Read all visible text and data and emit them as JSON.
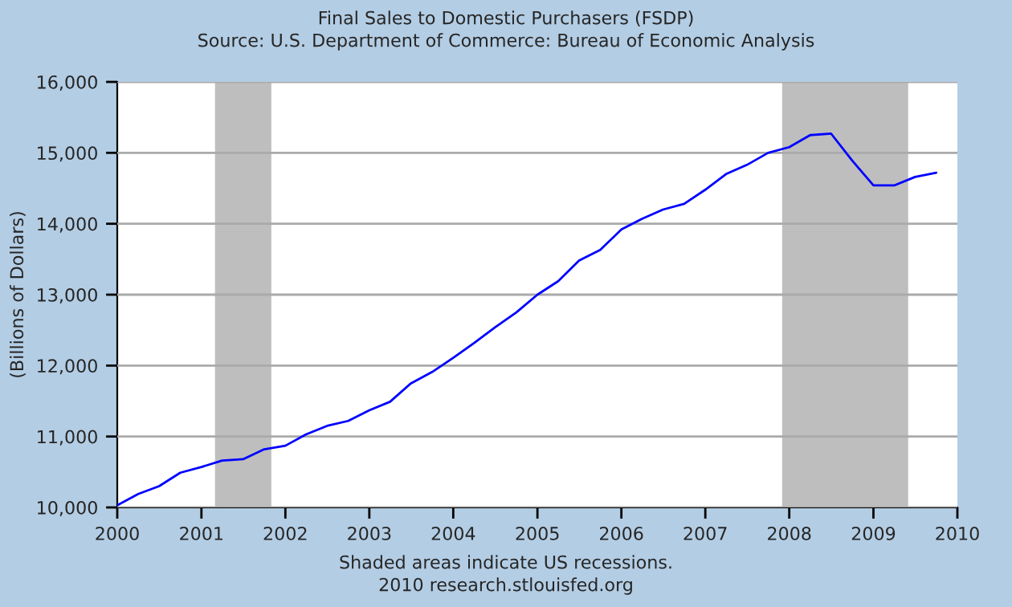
{
  "chart_data": {
    "type": "line",
    "title": "Final Sales to Domestic Purchasers (FSDP)",
    "subtitle": "Source: U.S. Department of Commerce: Bureau of Economic Analysis",
    "ylabel": "(Billions of Dollars)",
    "x": [
      "2000-01",
      "2000-04",
      "2000-07",
      "2000-10",
      "2001-01",
      "2001-04",
      "2001-07",
      "2001-10",
      "2002-01",
      "2002-04",
      "2002-07",
      "2002-10",
      "2003-01",
      "2003-04",
      "2003-07",
      "2003-10",
      "2004-01",
      "2004-04",
      "2004-07",
      "2004-10",
      "2005-01",
      "2005-04",
      "2005-07",
      "2005-10",
      "2006-01",
      "2006-04",
      "2006-07",
      "2006-10",
      "2007-01",
      "2007-04",
      "2007-07",
      "2007-10",
      "2008-01",
      "2008-04",
      "2008-07",
      "2008-10",
      "2009-01",
      "2009-04",
      "2009-07",
      "2009-10"
    ],
    "series": [
      {
        "color": "#0000ff",
        "values": [
          10030,
          10190,
          10300,
          10490,
          10570,
          10660,
          10680,
          10820,
          10870,
          11030,
          11150,
          11220,
          11370,
          11490,
          11750,
          11910,
          12110,
          12320,
          12540,
          12750,
          13000,
          13190,
          13480,
          13630,
          13920,
          14070,
          14200,
          14280,
          14480,
          14700,
          14830,
          15000,
          15080,
          15250,
          15270,
          14890,
          14540,
          14540,
          14660,
          14720
        ]
      }
    ],
    "xlim": [
      "2000-01-01",
      "2010-01-01"
    ],
    "xticks": [
      "2000",
      "2001",
      "2002",
      "2003",
      "2004",
      "2005",
      "2006",
      "2007",
      "2008",
      "2009",
      "2010"
    ],
    "ylim": [
      10000,
      16000
    ],
    "yticks": [
      {
        "value": 10000,
        "label": "10,000"
      },
      {
        "value": 11000,
        "label": "11,000"
      },
      {
        "value": 12000,
        "label": "12,000"
      },
      {
        "value": 13000,
        "label": "13,000"
      },
      {
        "value": 14000,
        "label": "14,000"
      },
      {
        "value": 15000,
        "label": "15,000"
      },
      {
        "value": 16000,
        "label": "16,000"
      }
    ],
    "bands": [
      {
        "axis": "x",
        "from": "2001-03",
        "to": "2001-11",
        "color": "#bebebe"
      },
      {
        "axis": "x",
        "from": "2007-12",
        "to": "2009-06",
        "color": "#bebebe"
      }
    ],
    "grid": "y",
    "legend": false,
    "marker": "none",
    "line_style": "solid",
    "annotations": [
      "Shaded areas indicate US recessions.",
      "2010 research.stlouisfed.org"
    ]
  }
}
